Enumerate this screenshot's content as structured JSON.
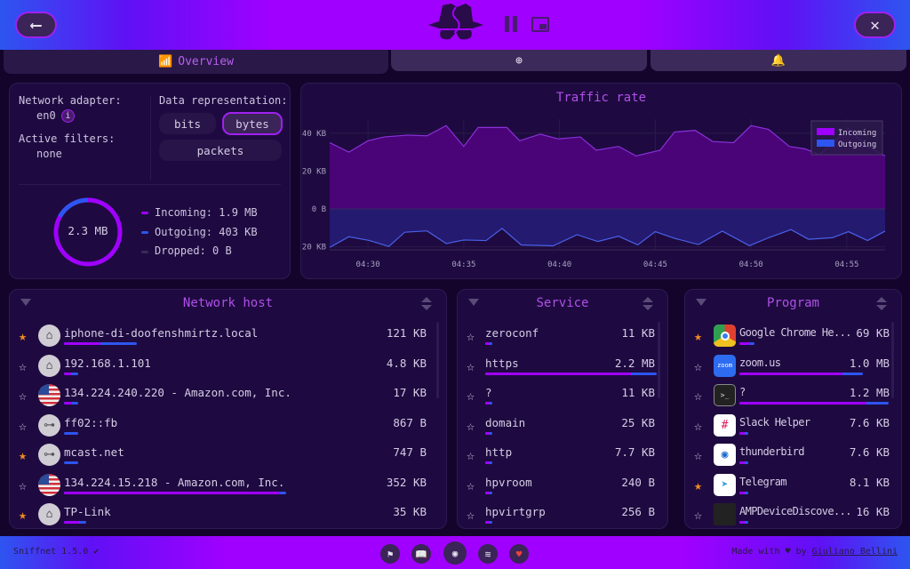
{
  "app": {
    "accent": "#a000ff",
    "outgoing_color": "#2d55f0"
  },
  "header": {
    "back_icon": "arrow-left-icon",
    "settings_icon": "wrench-screwdriver-icon",
    "logo": "sniffnet-logo",
    "pause_icon": "pause-icon",
    "window_icon": "picture-in-picture-icon",
    "back": "⟵"
  },
  "tabs": [
    {
      "label": "Overview",
      "icon": "chart-icon",
      "active": true
    },
    {
      "label": "",
      "icon": "search-icon"
    },
    {
      "label": "",
      "icon": "bell-icon"
    }
  ],
  "overview": {
    "adapter_label": "Network adapter:",
    "adapter": "en0",
    "info": "i",
    "filters_label": "Active filters:",
    "filters": "none",
    "repr_label": "Data representation:",
    "repr_options": [
      "bits",
      "bytes",
      "packets"
    ],
    "repr_selected": "bytes",
    "total": "2.3 MB",
    "incoming": "Incoming: 1.9 MB",
    "outgoing": "Outgoing: 403 KB",
    "dropped": "Dropped: 0 B",
    "outgoing_share": 0.17
  },
  "chart_data": {
    "type": "area",
    "title": "Traffic rate",
    "y_ticks": [
      "40 KB",
      "20 KB",
      "0 B",
      "20 KB"
    ],
    "x_ticks": [
      "04:30",
      "04:35",
      "04:40",
      "04:45",
      "04:50",
      "04:55"
    ],
    "x_range": [
      "04:28:00",
      "04:57:00"
    ],
    "y_range_kb": [
      -20,
      45
    ],
    "legend": [
      "Incoming",
      "Outgoing"
    ],
    "legend_position": "top-right",
    "series": [
      {
        "name": "Incoming",
        "color": "#a000ff",
        "points": [
          [
            "04:28:00",
            35
          ],
          [
            "04:29:00",
            30
          ],
          [
            "04:30:00",
            36
          ],
          [
            "04:30:50",
            38
          ],
          [
            "04:32:05",
            39
          ],
          [
            "04:33:05",
            38.6
          ],
          [
            "04:34:05",
            44
          ],
          [
            "04:35:00",
            33
          ],
          [
            "04:35:45",
            43
          ],
          [
            "04:37:15",
            43
          ],
          [
            "04:37:55",
            36
          ],
          [
            "04:39:00",
            39.5
          ],
          [
            "04:39:55",
            37
          ],
          [
            "04:41:05",
            38
          ],
          [
            "04:41:55",
            31
          ],
          [
            "04:43:05",
            33
          ],
          [
            "04:44:00",
            28
          ],
          [
            "04:45:15",
            31
          ],
          [
            "04:46:00",
            40.6
          ],
          [
            "04:47:05",
            41.5
          ],
          [
            "04:48:00",
            35.6
          ],
          [
            "04:49:05",
            35
          ],
          [
            "04:50:00",
            44
          ],
          [
            "04:50:55",
            42
          ],
          [
            "04:52:00",
            33
          ],
          [
            "04:52:50",
            31.7
          ],
          [
            "04:53:35",
            28.6
          ],
          [
            "04:55:05",
            42.6
          ],
          [
            "04:56:05",
            33
          ],
          [
            "04:57:00",
            28
          ]
        ]
      },
      {
        "name": "Outgoing",
        "color": "#2d55f0",
        "points": [
          [
            "04:28:00",
            20.3
          ],
          [
            "04:29:00",
            14.7
          ],
          [
            "04:30:05",
            16.7
          ],
          [
            "04:31:05",
            19.8
          ],
          [
            "04:31:55",
            12.3
          ],
          [
            "04:33:05",
            11.6
          ],
          [
            "04:34:05",
            18.3
          ],
          [
            "04:35:00",
            16.4
          ],
          [
            "04:36:10",
            16.7
          ],
          [
            "04:37:00",
            10.3
          ],
          [
            "04:38:00",
            19
          ],
          [
            "04:39:40",
            19.5
          ],
          [
            "04:40:55",
            13.6
          ],
          [
            "04:42:00",
            17.2
          ],
          [
            "04:43:05",
            14.4
          ],
          [
            "04:44:05",
            19
          ],
          [
            "04:45:00",
            12
          ],
          [
            "04:46:00",
            15.5
          ],
          [
            "04:47:15",
            18.8
          ],
          [
            "04:48:30",
            11.7
          ],
          [
            "04:49:55",
            19.4
          ],
          [
            "04:50:55",
            15.2
          ],
          [
            "04:52:05",
            10.9
          ],
          [
            "04:53:00",
            16
          ],
          [
            "04:54:15",
            15.2
          ],
          [
            "04:55:05",
            12
          ],
          [
            "04:56:05",
            16.7
          ],
          [
            "04:57:00",
            11.7
          ]
        ]
      }
    ]
  },
  "hosts": {
    "title": "Network host",
    "rows": [
      {
        "name": "iphone-di-doofenshmirtz.local",
        "value": "121 KB",
        "fav": true,
        "icon": "home-icon",
        "fill": 0.2,
        "in": 0.5
      },
      {
        "name": "192.168.1.101",
        "value": "4.8 KB",
        "fav": false,
        "icon": "home-icon",
        "fill": 0.04,
        "in": 0.5
      },
      {
        "name": "134.224.240.220 - Amazon.com, Inc.",
        "value": "17 KB",
        "fav": false,
        "icon": "us-flag-icon",
        "fill": 0.04,
        "in": 0.55
      },
      {
        "name": "ff02::fb",
        "value": "867 B",
        "fav": false,
        "icon": "network-icon",
        "fill": 0.04,
        "in": 0
      },
      {
        "name": "mcast.net",
        "value": "747 B",
        "fav": true,
        "icon": "network-icon",
        "fill": 0.04,
        "in": 0
      },
      {
        "name": "134.224.15.218 - Amazon.com, Inc.",
        "value": "352 KB",
        "fav": false,
        "icon": "us-flag-icon",
        "fill": 0.61,
        "in": 0.97
      },
      {
        "name": "TP-Link",
        "value": "35 KB",
        "fav": true,
        "icon": "home-icon",
        "fill": 0.06,
        "in": 0.7
      }
    ]
  },
  "services": {
    "title": "Service",
    "rows": [
      {
        "name": "zeroconf",
        "value": "11 KB",
        "fav": false,
        "fill": 0.04,
        "in": 0.6
      },
      {
        "name": "https",
        "value": "2.2 MB",
        "fav": false,
        "fill": 1.0,
        "in": 0.85
      },
      {
        "name": "?",
        "value": "11 KB",
        "fav": false,
        "fill": 0.04,
        "in": 0.6
      },
      {
        "name": "domain",
        "value": "25 KB",
        "fav": false,
        "fill": 0.04,
        "in": 0.6
      },
      {
        "name": "http",
        "value": "7.7 KB",
        "fav": false,
        "fill": 0.04,
        "in": 0.6
      },
      {
        "name": "hpvroom",
        "value": "240 B",
        "fav": false,
        "fill": 0.04,
        "in": 0.6
      },
      {
        "name": "hpvirtgrp",
        "value": "256 B",
        "fav": false,
        "fill": 0.04,
        "in": 0.6
      }
    ]
  },
  "programs": {
    "title": "Program",
    "rows": [
      {
        "name": "Google Chrome He...",
        "value": "69 KB",
        "fav": true,
        "icon": "chrome-icon",
        "fill": 0.1,
        "in": 0.7
      },
      {
        "name": "zoom.us",
        "value": "1.0 MB",
        "fav": false,
        "icon": "zoom-icon",
        "icon_text": "zoom",
        "fill": 0.83,
        "in": 0.83
      },
      {
        "name": "?",
        "value": "1.2 MB",
        "fav": false,
        "icon": "terminal-icon",
        "icon_text": ">_",
        "fill": 1.0,
        "in": 0.85
      },
      {
        "name": "Slack Helper",
        "value": "7.6 KB",
        "fav": false,
        "icon": "slack-icon",
        "fill": 0.06,
        "in": 0.6
      },
      {
        "name": "thunderbird",
        "value": "7.6 KB",
        "fav": false,
        "icon": "thunderbird-icon",
        "fill": 0.06,
        "in": 0.6
      },
      {
        "name": "Telegram",
        "value": "8.1 KB",
        "fav": true,
        "icon": "telegram-icon",
        "fill": 0.06,
        "in": 0.6
      },
      {
        "name": "AMPDeviceDiscove...",
        "value": "16 KB",
        "fav": false,
        "icon": "exec-icon",
        "fill": 0.06,
        "in": 0.6
      }
    ]
  },
  "footer": {
    "version": "Sniffnet 1.5.0",
    "check": "✔",
    "made_with": "Made with",
    "heart": "♥",
    "by": "by",
    "author": "Giuliano Bellini",
    "links": [
      {
        "icon": "signpost-icon",
        "g": "⚑"
      },
      {
        "icon": "book-icon",
        "g": "📖"
      },
      {
        "icon": "github-icon",
        "g": "◉"
      },
      {
        "icon": "rss-icon",
        "g": "≋"
      },
      {
        "icon": "heart-icon",
        "g": "♥"
      }
    ]
  }
}
